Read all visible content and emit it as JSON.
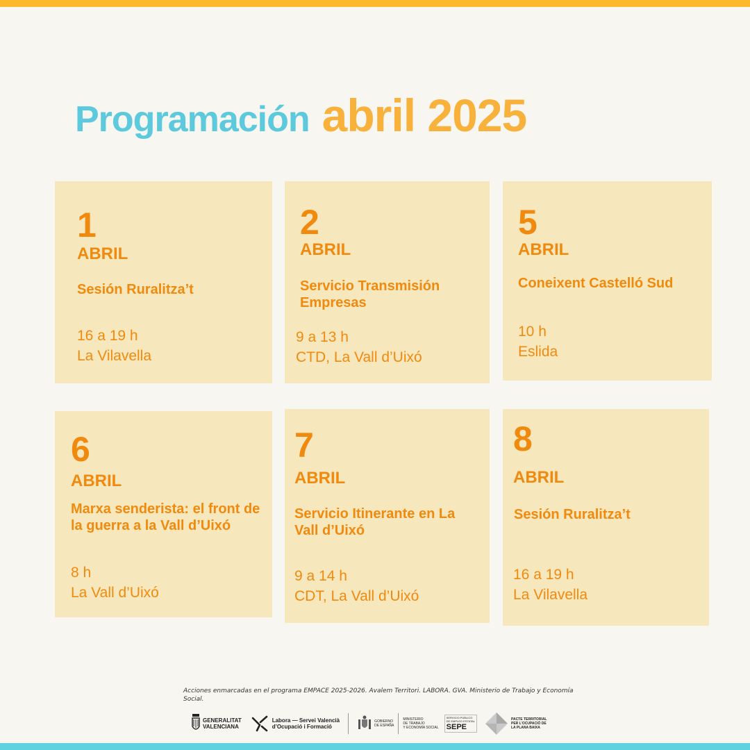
{
  "header": {
    "title_part1": "Programación",
    "title_part2": "abril 2025"
  },
  "colors": {
    "accent_cyan": "#5cc9dc",
    "accent_yellow": "#f8b13b",
    "card_bg": "#f7e7bd",
    "card_text": "#f08a0e",
    "top_bar": "#fdb92b",
    "bottom_bar": "#5ed3df"
  },
  "events": [
    {
      "day": "1",
      "month": "ABRIL",
      "title": "Sesión Ruralitza’t",
      "time": "16 a 19 h",
      "place": "La Vilavella"
    },
    {
      "day": "2",
      "month": "ABRIL",
      "title": "Servicio Transmisión Empresas",
      "time": "9 a 13 h",
      "place": "CTD, La Vall d’Uixó"
    },
    {
      "day": "5",
      "month": "ABRIL",
      "title": "Coneixent Castelló Sud",
      "time": "10 h",
      "place": "Eslida"
    },
    {
      "day": "6",
      "month": "ABRIL",
      "title": "Marxa senderista: el front de la guerra a la Vall d’Uixó",
      "time": "8 h",
      "place": "La Vall d’Uixó"
    },
    {
      "day": "7",
      "month": "ABRIL",
      "title": "Servicio Itinerante en La Vall d’Uixó",
      "time": "9 a 14 h",
      "place": "CDT, La Vall d’Uixó"
    },
    {
      "day": "8",
      "month": "ABRIL",
      "title": "Sesión Ruralitza’t",
      "time": "16 a 19 h",
      "place": "La Vilavella"
    }
  ],
  "footer": {
    "note": "Acciones enmarcadas en el programa EMPACE 2025-2026. Avalem Territori. LABORA. GVA.  Ministerio de Trabajo y Economía Social.",
    "logos": {
      "gva": [
        "GENERALITAT",
        "VALENCIANA"
      ],
      "labora": [
        "Labora — Servei Valencià",
        "d’Ocupació i Formació"
      ],
      "gobierno": [
        "GOBIERNO",
        "DE ESPAÑA"
      ],
      "ministerio": [
        "MINISTERIO",
        "DE TRABAJO",
        "Y ECONOMÍA SOCIAL"
      ],
      "sepe": [
        "SERVICIO PÚBLICO",
        "DE EMPLEO ESTATAL",
        "SEPE"
      ],
      "pacte": [
        "PACTE TERRITORIAL",
        "PER L’OCUPACIÓ DE",
        "LA PLANA BAIXA"
      ]
    },
    "logo_icons": [
      "gva-shield-icon",
      "labora-arrow-icon",
      "spain-coat-of-arms-icon",
      "pacte-diamond-icon"
    ]
  }
}
